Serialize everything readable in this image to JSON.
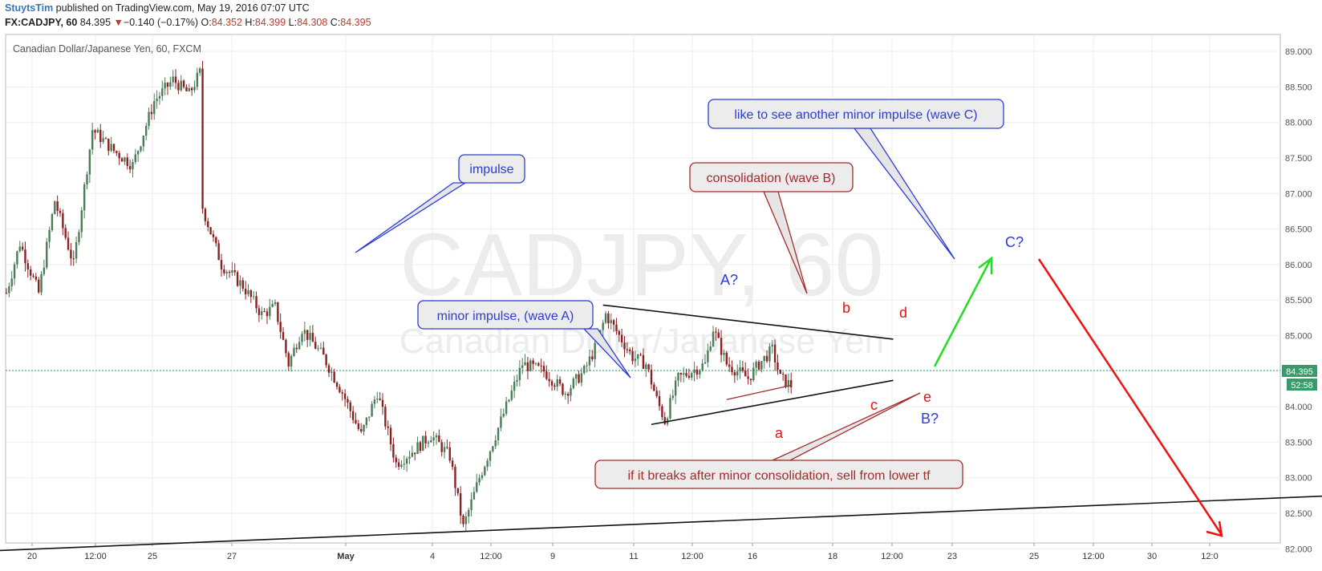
{
  "header": {
    "author": "StuytsTim",
    "published_text": " published on TradingView.com, May 19, 2016 07:07 UTC"
  },
  "symbol_bar": {
    "symbol": "FX:CADJPY, 60",
    "last": "84.395",
    "change_arrow": "▼",
    "change": "−0.140 (−0.17%)",
    "o_label": "O:",
    "o_value": "84.352",
    "h_label": "H:",
    "h_value": "84.399",
    "l_label": "L:",
    "l_value": "84.308",
    "c_label": "C:",
    "c_value": "84.395"
  },
  "colors": {
    "up_candle": "#4a7c59",
    "down_candle": "#8b2020",
    "blue_note": "#2c3cd6",
    "red_note": "#a52a2a",
    "green_arrow": "#22dd22",
    "red_arrow": "#ee1111"
  },
  "chart_data": {
    "type": "candlestick",
    "title": "Canadian Dollar/Japanese Yen, 60, FXCM",
    "watermark_symbol": "CADJPY, 60",
    "watermark_name": "Canadian Dollar/Japanese Yen",
    "ylim": [
      81.8,
      89.1
    ],
    "y_ticks": [
      "89.000",
      "88.500",
      "88.000",
      "87.500",
      "87.000",
      "86.500",
      "86.000",
      "85.500",
      "85.000",
      "84.500",
      "84.000",
      "83.500",
      "83.000",
      "82.500",
      "82.000"
    ],
    "x_ticks": [
      "20",
      "12:00",
      "25",
      "27",
      "May",
      "4",
      "12:00",
      "9",
      "11",
      "12:00",
      "16",
      "18",
      "12:00",
      "23",
      "25",
      "12:00",
      "30",
      "12:0"
    ],
    "last_price_label": "84.395",
    "countdown_label": "52:58",
    "path": [
      [
        0,
        85.6
      ],
      [
        5,
        86.3
      ],
      [
        12,
        85.6
      ],
      [
        18,
        86.9
      ],
      [
        25,
        86.0
      ],
      [
        32,
        87.9
      ],
      [
        40,
        87.6
      ],
      [
        47,
        87.4
      ],
      [
        55,
        88.3
      ],
      [
        62,
        88.6
      ],
      [
        68,
        88.4
      ],
      [
        72,
        88.7
      ],
      [
        73,
        86.8
      ],
      [
        80,
        86.0
      ],
      [
        88,
        85.7
      ],
      [
        95,
        85.3
      ],
      [
        100,
        85.4
      ],
      [
        105,
        84.6
      ],
      [
        110,
        85.1
      ],
      [
        118,
        84.7
      ],
      [
        125,
        84.2
      ],
      [
        132,
        83.6
      ],
      [
        138,
        84.2
      ],
      [
        145,
        83.2
      ],
      [
        152,
        83.4
      ],
      [
        158,
        83.6
      ],
      [
        165,
        83.3
      ],
      [
        170,
        82.3
      ],
      [
        176,
        83.0
      ],
      [
        185,
        83.9
      ],
      [
        192,
        84.6
      ],
      [
        200,
        84.5
      ],
      [
        208,
        84.2
      ],
      [
        215,
        84.5
      ],
      [
        220,
        84.9
      ],
      [
        223,
        85.3
      ],
      [
        228,
        85.0
      ],
      [
        233,
        84.7
      ],
      [
        238,
        84.6
      ],
      [
        242,
        84.1
      ],
      [
        245,
        83.8
      ],
      [
        250,
        84.4
      ],
      [
        255,
        84.5
      ],
      [
        260,
        84.6
      ],
      [
        263,
        85.1
      ],
      [
        268,
        84.6
      ],
      [
        272,
        84.5
      ],
      [
        276,
        84.4
      ],
      [
        280,
        84.6
      ],
      [
        285,
        84.8
      ],
      [
        288,
        84.4
      ],
      [
        292,
        84.3
      ]
    ],
    "trendlines": [
      {
        "from": [
          -32,
          81.93
        ],
        "to": [
          560,
          82.85
        ]
      },
      {
        "from": [
          222,
          85.43
        ],
        "to": [
          330,
          84.95
        ]
      },
      {
        "from": [
          240,
          83.75
        ],
        "to": [
          330,
          84.37
        ]
      },
      {
        "from": [
          268,
          84.1
        ],
        "to": [
          292,
          84.3
        ]
      }
    ],
    "wave_labels": [
      {
        "text": "A?",
        "color": "blue"
      },
      {
        "text": "b",
        "color": "red"
      },
      {
        "text": "d",
        "color": "red"
      },
      {
        "text": "a",
        "color": "red"
      },
      {
        "text": "c",
        "color": "red"
      },
      {
        "text": "e",
        "color": "red"
      },
      {
        "text": "B?",
        "color": "blue"
      },
      {
        "text": "C?",
        "color": "blue"
      }
    ],
    "annotations": [
      {
        "text": "impulse",
        "color": "blue"
      },
      {
        "text": "like to see another minor impulse (wave C)",
        "color": "blue"
      },
      {
        "text": "consolidation (wave B)",
        "color": "red"
      },
      {
        "text": "minor impulse, (wave A)",
        "color": "blue"
      },
      {
        "text": "if it breaks after minor consolidation, sell from lower tf",
        "color": "red"
      }
    ]
  }
}
